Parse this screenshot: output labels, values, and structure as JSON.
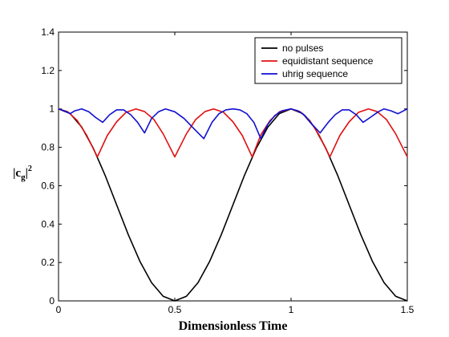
{
  "chart_data": {
    "type": "line",
    "title": "",
    "xlabel": "Dimensionless Time",
    "ylabel_main": "|c",
    "ylabel_sub": "g",
    "ylabel_end": "|",
    "ylabel_sup": "2",
    "xlim": [
      0,
      1.5
    ],
    "ylim": [
      0,
      1.4
    ],
    "xticks": [
      0,
      0.5,
      1,
      1.5
    ],
    "xtick_labels": [
      "0",
      "0.5",
      "1",
      "1.5"
    ],
    "yticks": [
      0,
      0.2,
      0.4,
      0.6,
      0.8,
      1,
      1.2,
      1.4
    ],
    "ytick_labels": [
      "0",
      "0.2",
      "0.4",
      "0.6",
      "0.8",
      "1",
      "1.2",
      "1.4"
    ],
    "grid": false,
    "legend_position": "top-right",
    "series": [
      {
        "name": "no pulses",
        "color": "#000000",
        "x": [
          0,
          0.05,
          0.1,
          0.15,
          0.2,
          0.25,
          0.3,
          0.35,
          0.4,
          0.45,
          0.5,
          0.55,
          0.6,
          0.65,
          0.7,
          0.75,
          0.8,
          0.85,
          0.9,
          0.95,
          1.0,
          1.05,
          1.1,
          1.15,
          1.2,
          1.25,
          1.3,
          1.35,
          1.4,
          1.45,
          1.5
        ],
        "y": [
          1,
          0.976,
          0.905,
          0.794,
          0.655,
          0.5,
          0.345,
          0.206,
          0.095,
          0.024,
          0,
          0.024,
          0.095,
          0.206,
          0.345,
          0.5,
          0.655,
          0.794,
          0.905,
          0.976,
          1,
          0.976,
          0.905,
          0.794,
          0.655,
          0.5,
          0.345,
          0.206,
          0.095,
          0.024,
          0
        ]
      },
      {
        "name": "equidistant sequence",
        "color": "#e01010",
        "x": [
          0,
          0.04,
          0.08,
          0.12,
          0.167,
          0.21,
          0.25,
          0.29,
          0.333,
          0.37,
          0.41,
          0.45,
          0.5,
          0.55,
          0.59,
          0.63,
          0.667,
          0.71,
          0.75,
          0.79,
          0.833,
          0.87,
          0.91,
          0.95,
          1.0,
          1.04,
          1.08,
          1.12,
          1.167,
          1.21,
          1.25,
          1.29,
          1.333,
          1.37,
          1.41,
          1.45,
          1.5
        ],
        "y": [
          1,
          0.985,
          0.94,
          0.865,
          0.75,
          0.862,
          0.933,
          0.982,
          1,
          0.986,
          0.945,
          0.87,
          0.75,
          0.87,
          0.945,
          0.986,
          1,
          0.982,
          0.933,
          0.862,
          0.75,
          0.865,
          0.94,
          0.985,
          1,
          0.985,
          0.94,
          0.865,
          0.75,
          0.862,
          0.933,
          0.982,
          1,
          0.986,
          0.945,
          0.87,
          0.75
        ]
      },
      {
        "name": "uhrig sequence",
        "color": "#1010d0",
        "x": [
          0,
          0.025,
          0.05,
          0.07,
          0.1,
          0.13,
          0.16,
          0.19,
          0.22,
          0.25,
          0.28,
          0.31,
          0.34,
          0.37,
          0.4,
          0.43,
          0.46,
          0.5,
          0.54,
          0.58,
          0.625,
          0.66,
          0.69,
          0.72,
          0.75,
          0.78,
          0.81,
          0.84,
          0.87,
          0.9,
          0.93,
          0.96,
          1.0,
          1.03,
          1.06,
          1.09,
          1.125,
          1.16,
          1.19,
          1.22,
          1.25,
          1.28,
          1.31,
          1.34,
          1.375,
          1.4,
          1.43,
          1.46,
          1.5
        ],
        "y": [
          1,
          0.99,
          0.975,
          0.99,
          1,
          0.985,
          0.955,
          0.93,
          0.97,
          0.995,
          0.995,
          0.97,
          0.93,
          0.875,
          0.95,
          0.985,
          1,
          0.985,
          0.95,
          0.9,
          0.845,
          0.93,
          0.975,
          0.995,
          1,
          0.995,
          0.975,
          0.93,
          0.845,
          0.92,
          0.965,
          0.99,
          1,
          0.99,
          0.965,
          0.92,
          0.875,
          0.93,
          0.97,
          0.995,
          0.995,
          0.97,
          0.93,
          0.955,
          0.985,
          1,
          0.99,
          0.975,
          1
        ]
      }
    ]
  }
}
